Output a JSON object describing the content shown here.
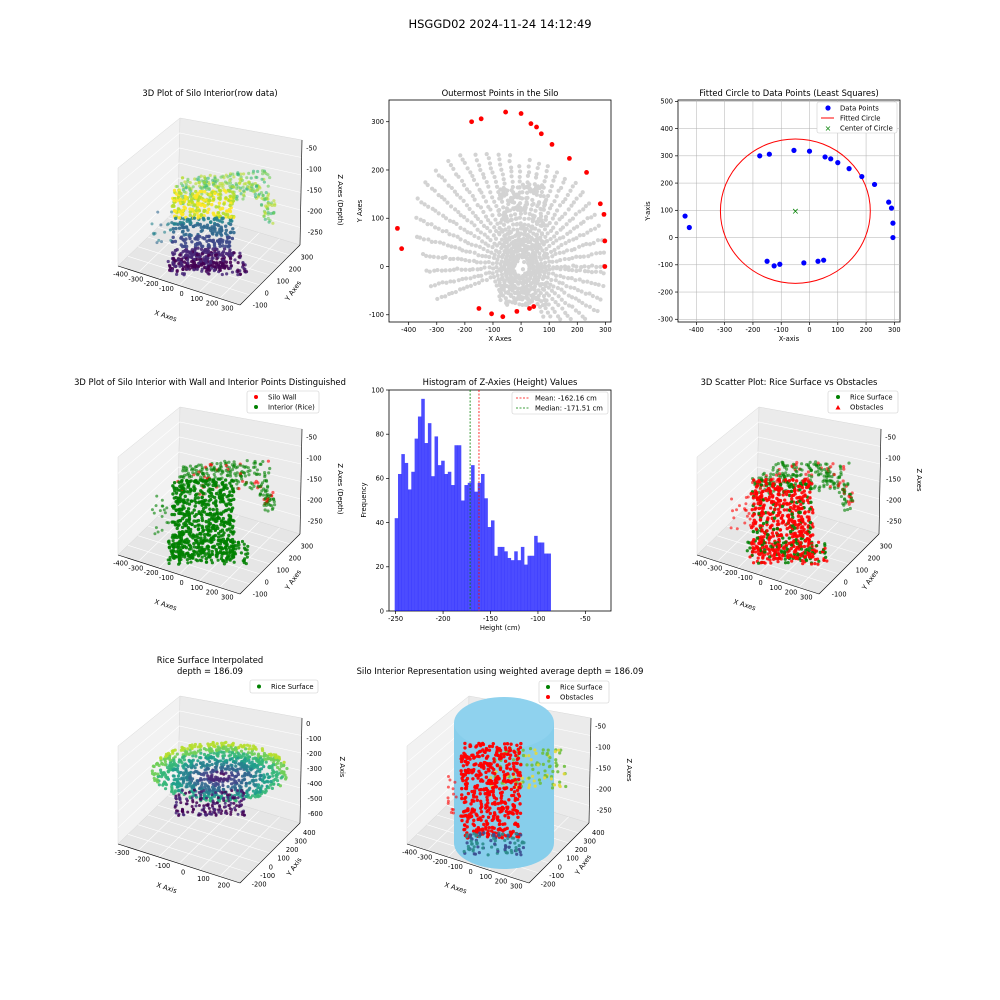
{
  "figure": {
    "suptitle": "HSGGD02 2024-11-24 14:12:49"
  },
  "chart_data": [
    {
      "id": "p1",
      "type": "scatter",
      "projection": "3d",
      "title": "3D Plot of Silo Interior(row data)",
      "xlabel": "X Axes",
      "ylabel": "Y Axes",
      "zlabel": "Z Axes (Depth)",
      "x_ticks": [
        "-400",
        "-300",
        "-200",
        "-100",
        "0",
        "100",
        "200",
        "300"
      ],
      "y_ticks": [
        "-100",
        "0",
        "100",
        "200",
        "300"
      ],
      "z_ticks": [
        "-50",
        "-100",
        "-150",
        "-200",
        "-250"
      ],
      "colormap": "viridis"
    },
    {
      "id": "p2",
      "type": "scatter",
      "title": "Outermost Points in the Silo",
      "xlabel": "X Axes",
      "ylabel": "Y Axes",
      "xlim": [
        -470,
        320
      ],
      "ylim": [
        -115,
        345
      ],
      "x_ticks": [
        -400,
        -300,
        -200,
        -100,
        0,
        100,
        200,
        300
      ],
      "y_ticks": [
        -100,
        0,
        100,
        200,
        300
      ],
      "interior_color": "#d3d3d3",
      "outer_color": "#ff0000",
      "series": [
        {
          "color_role": "outer",
          "points": [
            [
              -176,
              300
            ],
            [
              -142,
              306
            ],
            [
              -55,
              320
            ],
            [
              0,
              317
            ],
            [
              35,
              296
            ],
            [
              55,
              289
            ],
            [
              72,
              275
            ],
            [
              110,
              253
            ],
            [
              172,
              224
            ],
            [
              233,
              195
            ],
            [
              282,
              130
            ],
            [
              295,
              108
            ],
            [
              298,
              53
            ],
            [
              298,
              0
            ],
            [
              45,
              -83
            ],
            [
              30,
              -87
            ],
            [
              -15,
              -93
            ],
            [
              -65,
              -104
            ],
            [
              -105,
              -98
            ],
            [
              -150,
              -87
            ],
            [
              -425,
              37
            ],
            [
              -440,
              79
            ]
          ]
        }
      ]
    },
    {
      "id": "p3",
      "type": "scatter",
      "title": "Fitted Circle to Data Points (Least Squares)",
      "xlabel": "X-axis",
      "ylabel": "Y-axis",
      "xlim": [
        -465,
        320
      ],
      "ylim": [
        -310,
        505
      ],
      "x_ticks": [
        -400,
        -300,
        -200,
        -100,
        0,
        100,
        200,
        300
      ],
      "y_ticks": [
        -300,
        -200,
        -100,
        0,
        100,
        200,
        300,
        400,
        500
      ],
      "grid": true,
      "legend_position": "top-right",
      "legend": [
        "Data Points",
        "Fitted Circle",
        "Center of Circle"
      ],
      "series": [
        {
          "name": "Data Points",
          "color": "#0000ff",
          "points": [
            [
              -440,
              79
            ],
            [
              -425,
              37
            ],
            [
              -176,
              300
            ],
            [
              -142,
              306
            ],
            [
              -55,
              320
            ],
            [
              0,
              317
            ],
            [
              55,
              296
            ],
            [
              75,
              289
            ],
            [
              100,
              275
            ],
            [
              140,
              253
            ],
            [
              185,
              224
            ],
            [
              230,
              195
            ],
            [
              280,
              130
            ],
            [
              290,
              108
            ],
            [
              295,
              53
            ],
            [
              295,
              0
            ],
            [
              50,
              -83
            ],
            [
              30,
              -87
            ],
            [
              -20,
              -93
            ],
            [
              -105,
              -98
            ],
            [
              -125,
              -104
            ],
            [
              -150,
              -87
            ]
          ]
        }
      ],
      "circle": {
        "center": [
          -50,
          97
        ],
        "radius": 265,
        "color": "#ff0000"
      },
      "center_marker": {
        "point": [
          -50,
          97
        ],
        "color": "#008000"
      }
    },
    {
      "id": "p4",
      "type": "scatter",
      "projection": "3d",
      "title": "3D Plot of Silo Interior with Wall and Interior Points Distinguished",
      "xlabel": "X Axes",
      "ylabel": "Y Axes",
      "zlabel": "Z Axes (Depth)",
      "x_ticks": [
        "-400",
        "-300",
        "-200",
        "-100",
        "0",
        "100",
        "200",
        "300"
      ],
      "y_ticks": [
        "-100",
        "0",
        "100",
        "200",
        "300"
      ],
      "z_ticks": [
        "-50",
        "-100",
        "-150",
        "-200",
        "-250"
      ],
      "legend_position": "top-right",
      "legend": [
        {
          "label": "Silo Wall",
          "color": "#ff0000"
        },
        {
          "label": "Interior (Rice)",
          "color": "#008000"
        }
      ]
    },
    {
      "id": "p5",
      "type": "bar",
      "title": "Histogram of Z-Axies (Height) Values",
      "xlabel": "Height (cm)",
      "ylabel": "Frequency",
      "xlim": [
        -257,
        -23
      ],
      "ylim": [
        0,
        100
      ],
      "x_ticks": [
        -250,
        -200,
        -150,
        -100,
        -50
      ],
      "y_ticks": [
        0,
        20,
        40,
        60,
        80,
        100
      ],
      "bar_color": "#0000ff",
      "bin_start": -251,
      "bin_width": 3.5,
      "values": [
        42,
        62,
        71,
        67,
        55,
        63,
        78,
        88,
        96,
        76,
        85,
        61,
        79,
        66,
        68,
        62,
        63,
        57,
        75,
        75,
        50,
        57,
        58,
        66,
        54,
        58,
        62,
        51,
        38,
        41,
        25,
        29,
        29,
        27,
        24,
        23,
        27,
        23,
        29,
        21,
        25,
        25,
        34,
        31,
        31,
        26,
        26
      ],
      "mean": -162.16,
      "median": -171.51,
      "legend_position": "top-right",
      "legend": [
        {
          "label": "Mean: -162.16 cm",
          "color": "#ff0000"
        },
        {
          "label": "Median: -171.51 cm",
          "color": "#008000"
        }
      ]
    },
    {
      "id": "p6",
      "type": "scatter",
      "projection": "3d",
      "title": "3D Scatter Plot: Rice Surface vs Obstacles",
      "xlabel": "X Axes",
      "ylabel": "Y Axes",
      "zlabel": "Z Axes",
      "x_ticks": [
        "-400",
        "-300",
        "-200",
        "-100",
        "0",
        "100",
        "200",
        "300"
      ],
      "y_ticks": [
        "-100",
        "0",
        "100",
        "200",
        "300"
      ],
      "z_ticks": [
        "-50",
        "-100",
        "-150",
        "-200",
        "-250"
      ],
      "legend_position": "top-right",
      "legend": [
        {
          "label": "Rice Surface",
          "color": "#008000",
          "marker": "circle"
        },
        {
          "label": "Obstacles",
          "color": "#ff0000",
          "marker": "triangle"
        }
      ]
    },
    {
      "id": "p7",
      "type": "scatter",
      "projection": "3d",
      "title": "Rice Surface Interpolated",
      "subtitle": "depth = 186.09",
      "xlabel": "X Axis",
      "ylabel": "Y Axis",
      "zlabel": "Z Axis",
      "x_ticks": [
        "-300",
        "-200",
        "-100",
        "0",
        "100",
        "200"
      ],
      "y_ticks": [
        "-200",
        "-100",
        "0",
        "100",
        "200",
        "300",
        "400"
      ],
      "z_ticks": [
        "0",
        "-100",
        "-200",
        "-300",
        "-400",
        "-500",
        "-600"
      ],
      "legend_position": "top-right",
      "legend": [
        {
          "label": "Rice Surface",
          "color": "#008000"
        }
      ]
    },
    {
      "id": "p8",
      "type": "scatter",
      "projection": "3d",
      "title": "Silo Interior Representation using weighted average depth = 186.09",
      "xlabel": "X Axes",
      "ylabel": "Y Axes",
      "zlabel": "Z Axes",
      "x_ticks": [
        "-400",
        "-300",
        "-200",
        "-100",
        "0",
        "100",
        "200",
        "300"
      ],
      "y_ticks": [
        "-200",
        "-100",
        "0",
        "100",
        "200",
        "300",
        "400"
      ],
      "z_ticks": [
        "-50",
        "-100",
        "-150",
        "-200",
        "-250"
      ],
      "legend_position": "top-right",
      "legend": [
        {
          "label": "Rice Surface",
          "color": "#008000"
        },
        {
          "label": "Obstacles",
          "color": "#ff0000"
        }
      ]
    }
  ]
}
